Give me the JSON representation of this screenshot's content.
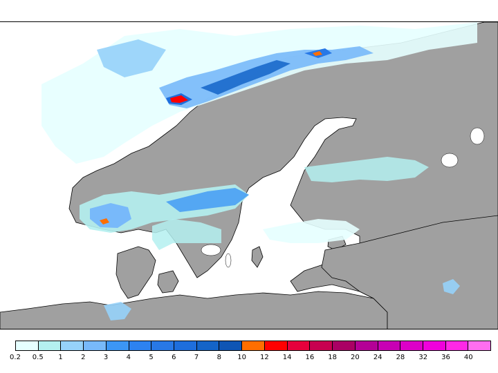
{
  "legend": {
    "labels": [
      "0.2",
      "0.5",
      "1",
      "2",
      "3",
      "4",
      "5",
      "6",
      "7",
      "8",
      "10",
      "12",
      "14",
      "16",
      "18",
      "20",
      "24",
      "28",
      "32",
      "36",
      "40"
    ],
    "colors": [
      "#e6ffff",
      "#b4f0f0",
      "#96d2fa",
      "#78b9fa",
      "#3c96f5",
      "#2d82f0",
      "#2878e6",
      "#1e6edc",
      "#1464c8",
      "#0f55b4",
      "#ff6e00",
      "#ff0000",
      "#e6003c",
      "#c80050",
      "#aa0064",
      "#b40096",
      "#c800b4",
      "#dc00c8",
      "#f000dc",
      "#ff28e6",
      "#ff6ef0"
    ]
  },
  "map": {
    "land_color": "#a0a0a0",
    "sea_color": "#ffffff",
    "coast_color": "#000000"
  }
}
